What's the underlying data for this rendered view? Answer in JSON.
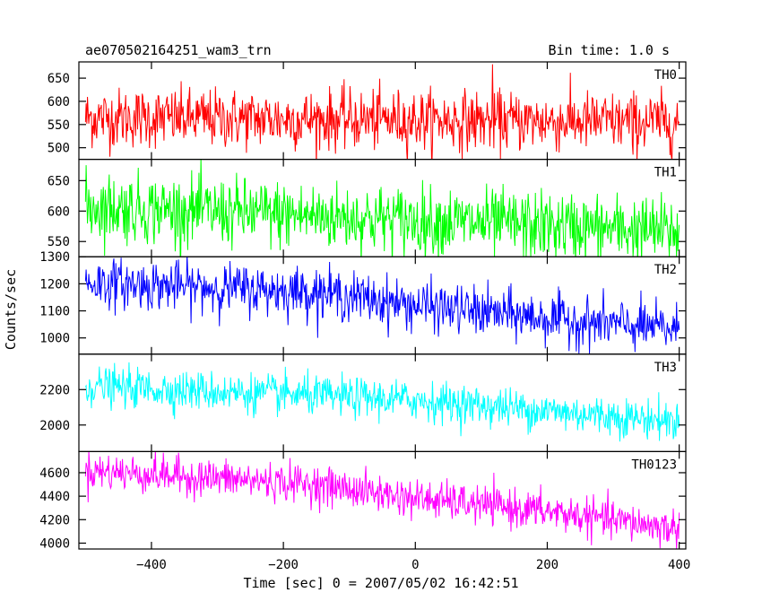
{
  "header": {
    "title": "ae070502164251_wam3_trn",
    "bin_time": "Bin time: 1.0 s"
  },
  "chart_data": {
    "type": "line",
    "xlabel": "Time [sec] 0 = 2007/05/02 16:42:51",
    "ylabel": "Counts/sec",
    "xlim": [
      -510,
      410
    ],
    "x_ticks": [
      -400,
      -200,
      0,
      200,
      400
    ],
    "x_tick_labels": [
      "−400",
      "−200",
      "0",
      "200",
      "400"
    ],
    "x_start": -500,
    "x_end": 400,
    "series": [
      {
        "name": "TH0",
        "color": "#ff0000",
        "ylim": [
          475,
          685
        ],
        "yticks": [
          500,
          550,
          600,
          650
        ],
        "trend": [
          [
            -500,
            565
          ],
          [
            400,
            555
          ]
        ],
        "noise_sd": 32,
        "spikes": [
          [
            117,
            680
          ],
          [
            330,
            485
          ]
        ]
      },
      {
        "name": "TH1",
        "color": "#00ff00",
        "ylim": [
          525,
          685
        ],
        "yticks": [
          550,
          600,
          650
        ],
        "trend": [
          [
            -500,
            608
          ],
          [
            400,
            566
          ]
        ],
        "noise_sd": 28,
        "spikes": []
      },
      {
        "name": "TH2",
        "color": "#0000ff",
        "ylim": [
          940,
          1300
        ],
        "yticks": [
          1000,
          1100,
          1200,
          1300
        ],
        "trend": [
          [
            -500,
            1205
          ],
          [
            -150,
            1170
          ],
          [
            0,
            1120
          ],
          [
            250,
            1060
          ],
          [
            400,
            1030
          ]
        ],
        "noise_sd": 45,
        "spikes": []
      },
      {
        "name": "TH3",
        "color": "#00ffff",
        "ylim": [
          1850,
          2400
        ],
        "yticks": [
          2000,
          2200
        ],
        "trend": [
          [
            -500,
            2220
          ],
          [
            0,
            2140
          ],
          [
            400,
            2020
          ]
        ],
        "noise_sd": 55,
        "spikes": []
      },
      {
        "name": "TH0123",
        "color": "#ff00ff",
        "ylim": [
          3950,
          4780
        ],
        "yticks": [
          4000,
          4200,
          4400,
          4600
        ],
        "trend": [
          [
            -500,
            4620
          ],
          [
            -150,
            4500
          ],
          [
            0,
            4380
          ],
          [
            200,
            4270
          ],
          [
            400,
            4120
          ]
        ],
        "noise_sd": 80,
        "spikes": []
      }
    ]
  }
}
